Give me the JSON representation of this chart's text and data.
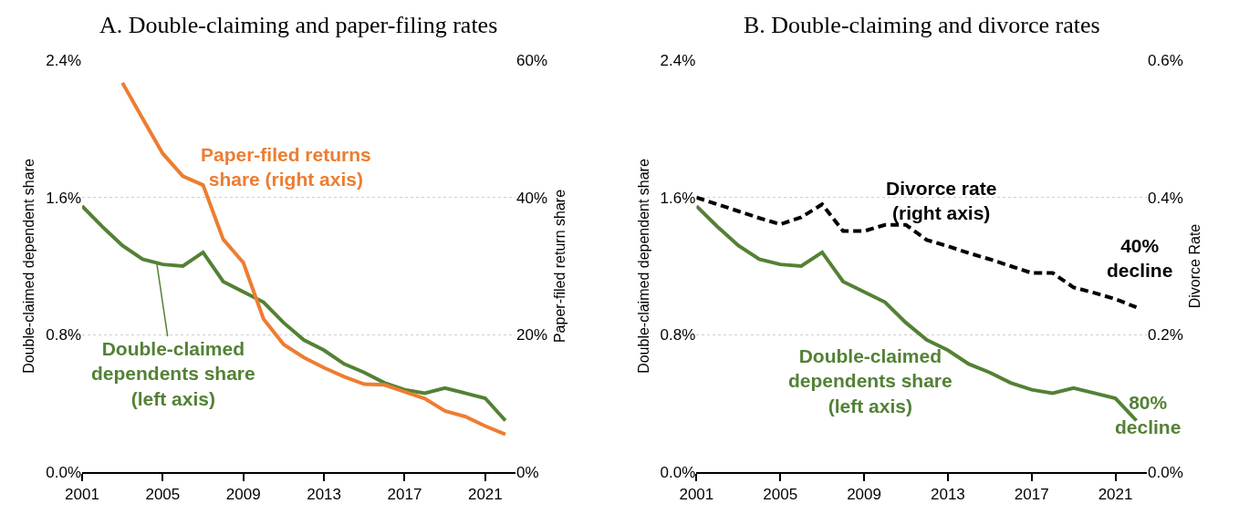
{
  "chart_data": [
    {
      "type": "line",
      "title": "A. Double-claiming and paper-filing rates",
      "ylabel": "Double-claimed dependent share",
      "y2label": "Paper-filed return share",
      "x": [
        2001,
        2002,
        2003,
        2004,
        2005,
        2006,
        2007,
        2008,
        2009,
        2010,
        2011,
        2012,
        2013,
        2014,
        2015,
        2016,
        2017,
        2018,
        2019,
        2020,
        2021,
        2022
      ],
      "series": [
        {
          "color": "#538135",
          "axis": "y",
          "line_style": "solid",
          "values": [
            1.55,
            1.43,
            1.32,
            1.24,
            1.21,
            1.2,
            1.28,
            1.11,
            1.05,
            0.99,
            0.87,
            0.77,
            0.71,
            0.63,
            0.58,
            0.52,
            0.48,
            0.46,
            0.49,
            0.46,
            0.43,
            0.3
          ]
        },
        {
          "color": "#ed7d31",
          "axis": "y2",
          "line_style": "solid",
          "values": [
            null,
            null,
            56.7,
            51.5,
            46.4,
            43.1,
            41.8,
            33.9,
            30.5,
            22.3,
            18.6,
            16.7,
            15.2,
            13.9,
            12.8,
            12.7,
            11.7,
            10.7,
            8.9,
            8.1,
            6.7,
            5.5
          ]
        }
      ],
      "xlim": [
        2001,
        2022.5
      ],
      "xticks": [
        2001,
        2005,
        2009,
        2013,
        2017,
        2021
      ],
      "ylim": [
        0,
        2.4
      ],
      "yticks": [
        {
          "value": 0,
          "label": "0.0%"
        },
        {
          "value": 0.8,
          "label": "0.8%"
        },
        {
          "value": 1.6,
          "label": "1.6%"
        },
        {
          "value": 2.4,
          "label": "2.4%"
        }
      ],
      "y2lim": [
        0,
        60
      ],
      "y2ticks": [
        {
          "value": 0,
          "label": "0%"
        },
        {
          "value": 20,
          "label": "20%"
        },
        {
          "value": 40,
          "label": "40%"
        },
        {
          "value": 60,
          "label": "60%"
        }
      ],
      "grid": "y",
      "annotations": [
        "Paper-filed returns\nshare (right axis)",
        {
          "text": "Double-claimed\ndependents share\n(left axis)",
          "x": 2004.7,
          "y": 1.22
        }
      ]
    },
    {
      "type": "line",
      "title": "B. Double-claiming and divorce rates",
      "ylabel": "Double-claimed dependent share",
      "y2label": "Divorce Rate",
      "x": [
        2001,
        2002,
        2003,
        2004,
        2005,
        2006,
        2007,
        2008,
        2009,
        2010,
        2011,
        2012,
        2013,
        2014,
        2015,
        2016,
        2017,
        2018,
        2019,
        2020,
        2021,
        2022
      ],
      "series": [
        {
          "color": "#538135",
          "axis": "y",
          "line_style": "solid",
          "values": [
            1.55,
            1.43,
            1.32,
            1.24,
            1.21,
            1.2,
            1.28,
            1.11,
            1.05,
            0.99,
            0.87,
            0.77,
            0.71,
            0.63,
            0.58,
            0.52,
            0.48,
            0.46,
            0.49,
            0.46,
            0.43,
            0.3
          ]
        },
        {
          "color": "#000000",
          "axis": "y2",
          "line_style": "dashed",
          "values": [
            0.4,
            0.39,
            0.38,
            0.37,
            0.361,
            0.371,
            0.39,
            0.351,
            0.351,
            0.36,
            0.36,
            0.338,
            0.329,
            0.319,
            0.31,
            0.3,
            0.29,
            0.29,
            0.269,
            0.261,
            0.252,
            0.24
          ]
        }
      ],
      "xlim": [
        2001,
        2022.5
      ],
      "xticks": [
        2001,
        2005,
        2009,
        2013,
        2017,
        2021
      ],
      "ylim": [
        0,
        2.4
      ],
      "yticks": [
        {
          "value": 0,
          "label": "0.0%"
        },
        {
          "value": 0.8,
          "label": "0.8%"
        },
        {
          "value": 1.6,
          "label": "1.6%"
        },
        {
          "value": 2.4,
          "label": "2.4%"
        }
      ],
      "y2lim": [
        0,
        0.6
      ],
      "y2ticks": [
        {
          "value": 0,
          "label": "0.0%"
        },
        {
          "value": 0.2,
          "label": "0.2%"
        },
        {
          "value": 0.4,
          "label": "0.4%"
        },
        {
          "value": 0.6,
          "label": "0.6%"
        }
      ],
      "grid": "y",
      "annotations": [
        "Divorce rate\n(right axis)",
        "40%\ndecline",
        "Double-claimed\ndependents share\n(left axis)",
        "80%\ndecline"
      ]
    }
  ]
}
